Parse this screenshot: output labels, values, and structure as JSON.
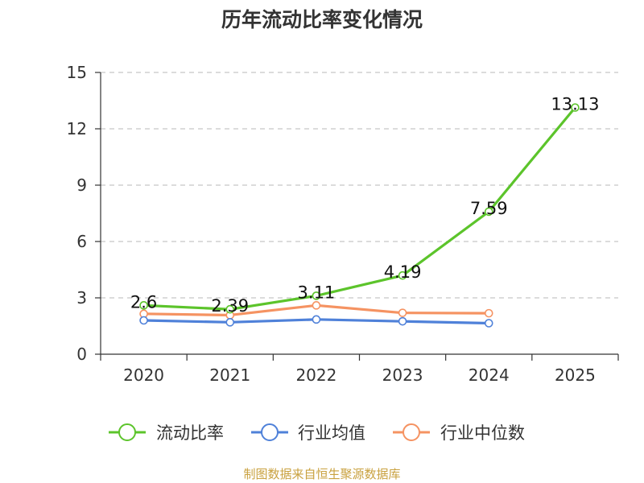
{
  "chart_data": {
    "type": "line",
    "title": "历年流动比率变化情况",
    "categories": [
      "2020",
      "2021",
      "2022",
      "2023",
      "2024",
      "2025"
    ],
    "ylim": [
      0,
      15
    ],
    "yticks": [
      0,
      3,
      6,
      9,
      12,
      15
    ],
    "grid": true,
    "legend_position": "bottom",
    "series": [
      {
        "name": "流动比率",
        "values": [
          2.6,
          2.39,
          3.11,
          4.19,
          7.59,
          13.13
        ],
        "color": "#5cc42b",
        "show_labels": true
      },
      {
        "name": "行业均值",
        "values": [
          1.8,
          1.7,
          1.85,
          1.75,
          1.65,
          null
        ],
        "color": "#4f81d9",
        "show_labels": false
      },
      {
        "name": "行业中位数",
        "values": [
          2.15,
          2.08,
          2.6,
          2.2,
          2.18,
          null
        ],
        "color": "#f59362",
        "show_labels": false
      }
    ],
    "source": "制图数据来自恒生聚源数据库"
  }
}
